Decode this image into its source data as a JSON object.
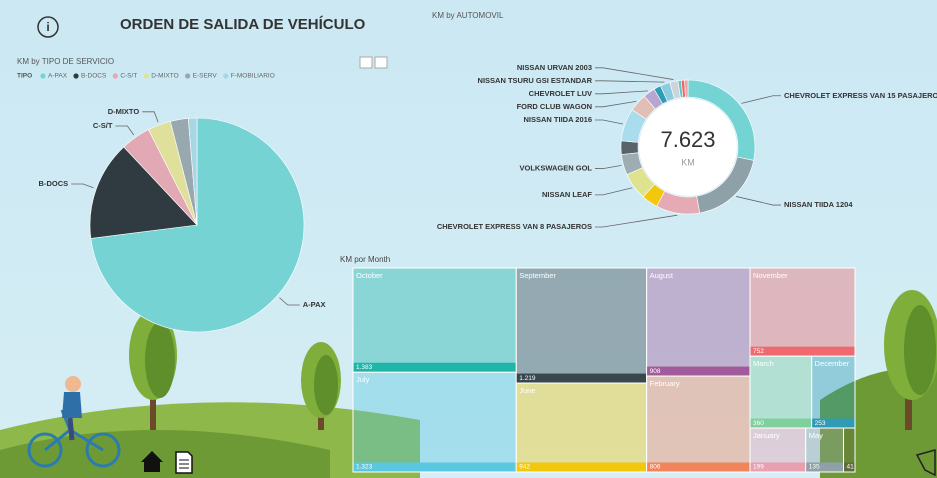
{
  "page": {
    "title": "ORDEN DE SALIDA DE VEHÍCULO"
  },
  "chart_data": [
    {
      "type": "pie",
      "title": "KM by TIPO DE SERVICIO",
      "legend_title": "TIPO",
      "categories": [
        "A-PAX",
        "B-DOCS",
        "C-S/T",
        "D-MIXTO",
        "E-SERV",
        "F-MOBILIARIO"
      ],
      "values": [
        73,
        15,
        4.5,
        3.5,
        2.7,
        1.3
      ],
      "colors": [
        "#76d3d4",
        "#2f3b40",
        "#e2a8b4",
        "#dfe09c",
        "#98a8ae",
        "#a8d6e4"
      ]
    },
    {
      "type": "donut",
      "title": "KM by AUTOMOVIL",
      "center_label": "7.623",
      "center_unit": "KM",
      "categories": [
        "CHEVROLET EXPRESS VAN 15 PASAJEROS",
        "NISSAN TIIDA 1204",
        "CHEVROLET EXPRESS VAN 8 PASAJEROS",
        null,
        "NISSAN LEAF",
        "VOLKSWAGEN GOL",
        null,
        "NISSAN TIIDA 2016",
        "FORD CLUB WAGON",
        "CHEVROLET LUV",
        null,
        "NISSAN TSURU GSI ESTANDAR",
        "NISSAN URVAN 2003",
        null,
        null,
        null
      ],
      "values": [
        2150,
        1450,
        800,
        300,
        500,
        380,
        250,
        600,
        330,
        220,
        130,
        180,
        150,
        60,
        60,
        63
      ],
      "colors": [
        "#74d3d3",
        "#8fa1a8",
        "#e6aab4",
        "#f2c80f",
        "#dde38f",
        "#9eadb3",
        "#5a6468",
        "#a9dcec",
        "#e1bfb6",
        "#b7a6cf",
        "#2f9bb5",
        "#8ccbe0",
        "#cdd5da",
        "#5fc7c4",
        "#f1645e",
        "#e9a3ad"
      ]
    },
    {
      "type": "treemap",
      "title": "KM por Month",
      "categories": [
        "October",
        "September",
        "November",
        "June",
        "May",
        "July",
        "February",
        "August",
        "December",
        "January",
        "March",
        null
      ],
      "values": [
        1383,
        1219,
        752,
        942,
        135,
        1323,
        806,
        908,
        253,
        199,
        360,
        41
      ],
      "value_labels": [
        "1.383",
        "1.219",
        "752",
        "942",
        "135",
        "1.323",
        "806",
        "908",
        "253",
        "199",
        "360",
        "41"
      ],
      "colors": [
        "#1fb5a8",
        "#38474d",
        "#ef6a6e",
        "#f2c80f",
        "#8fa0a6",
        "#5bc7e0",
        "#f2845c",
        "#a15a9b",
        "#2f9bb5",
        "#e6a0b0",
        "#7fcf9f",
        "#5f6b3c"
      ]
    }
  ]
}
